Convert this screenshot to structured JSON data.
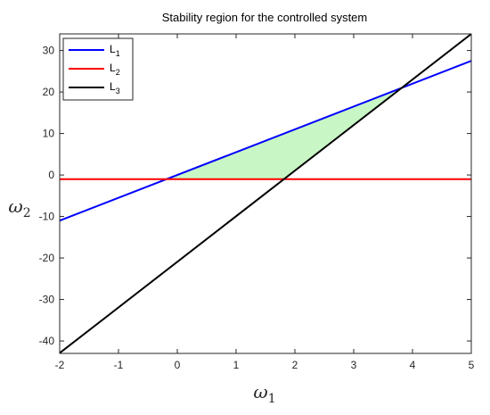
{
  "chart_data": {
    "type": "line",
    "title": "Stability region for the controlled system",
    "xlabel": {
      "symbol": "ω",
      "subscript": "1"
    },
    "ylabel": {
      "symbol": "ω",
      "subscript": "2"
    },
    "xlim": [
      -2,
      5
    ],
    "ylim": [
      -43,
      34
    ],
    "xticks": [
      -2,
      -1,
      0,
      1,
      2,
      3,
      4,
      5
    ],
    "yticks": [
      -40,
      -30,
      -20,
      -10,
      0,
      10,
      20,
      30
    ],
    "grid": false,
    "legend_position": "top-left",
    "series": [
      {
        "name": "L",
        "subscript": "1",
        "color": "#0000ff",
        "x": [
          -2,
          5
        ],
        "y": [
          -11,
          27.5
        ]
      },
      {
        "name": "L",
        "subscript": "2",
        "color": "#ff0000",
        "x": [
          -2,
          5
        ],
        "y": [
          -1,
          -1
        ]
      },
      {
        "name": "L",
        "subscript": "3",
        "color": "#000000",
        "x": [
          -2,
          5
        ],
        "y": [
          -42.9,
          34
        ]
      }
    ],
    "stable_region": {
      "fill_color": "#c8f7c5",
      "vertices": [
        [
          -0.18,
          -1
        ],
        [
          1.8,
          -1
        ],
        [
          3.8,
          21
        ]
      ]
    }
  }
}
